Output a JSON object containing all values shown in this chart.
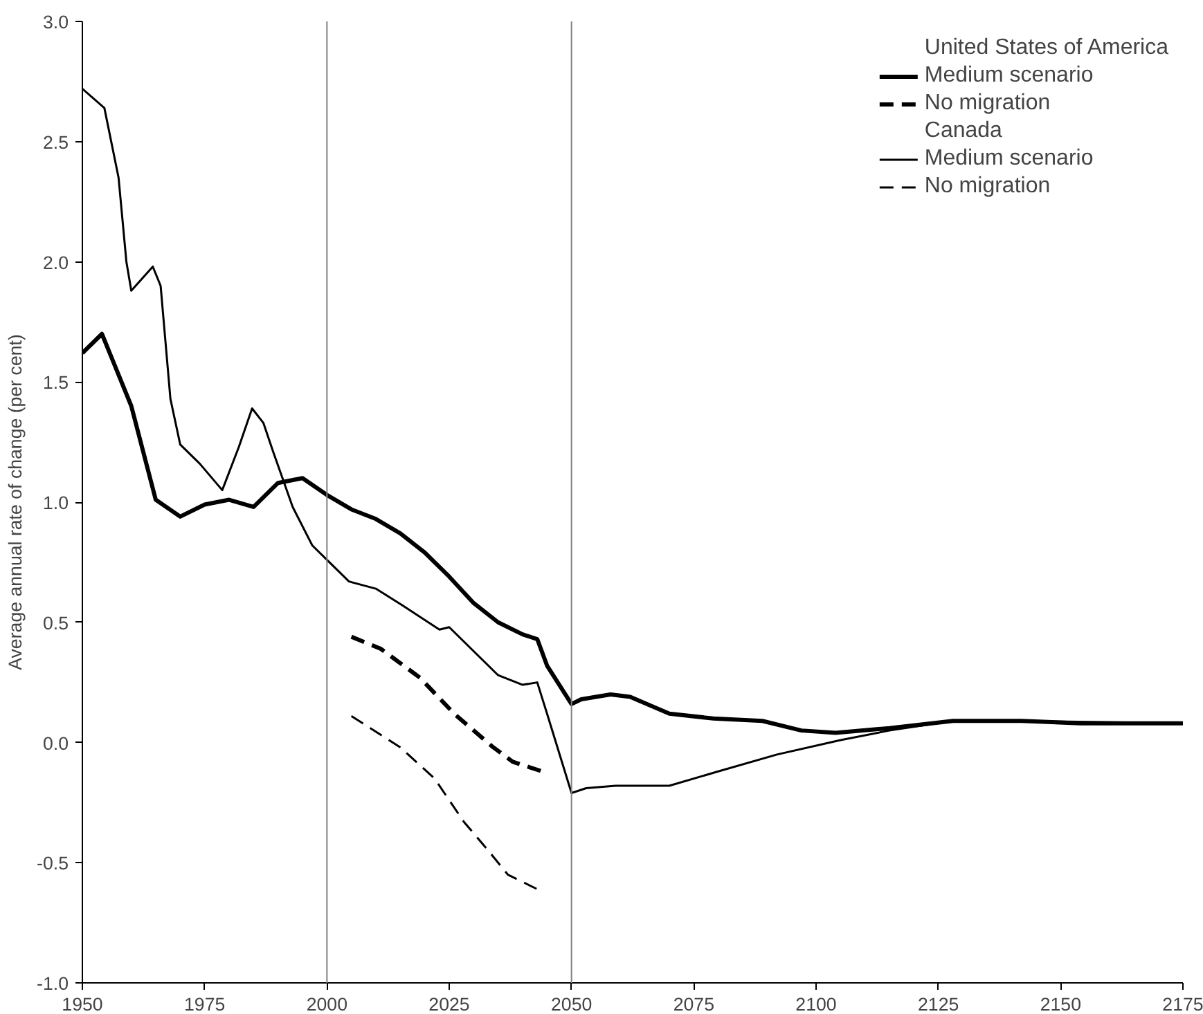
{
  "chart_data": {
    "type": "line",
    "ylabel": "Average annual rate of change (per cent)",
    "annotations": [
      "United States of America",
      "Canada"
    ],
    "xlim": [
      1950,
      2175
    ],
    "xticks": [
      1950,
      1975,
      2000,
      2025,
      2050,
      2075,
      2100,
      2125,
      2150,
      2175
    ],
    "ylim": [
      -1.0,
      3.0
    ],
    "yticks": [
      {
        "value": -1,
        "label": "-1.0"
      },
      {
        "value": -0.5,
        "label": "-0.5"
      },
      {
        "value": 0,
        "label": "0.0"
      },
      {
        "value": 0.5,
        "label": "0.5"
      },
      {
        "value": 1,
        "label": "1.0"
      },
      {
        "value": 1.5,
        "label": "1.5"
      },
      {
        "value": 2,
        "label": "2.0"
      },
      {
        "value": 2.5,
        "label": "2.5"
      },
      {
        "value": 3,
        "label": "3.0"
      }
    ],
    "grid": false,
    "legend": "top right",
    "marker": "none",
    "ref_lines": [
      {
        "axis": "x",
        "value": 2000,
        "color": "#808080"
      },
      {
        "axis": "x",
        "value": 2050,
        "color": "#808080"
      }
    ],
    "series": [
      {
        "name": "Medium scenario",
        "color": "#000000",
        "line_style": "solid",
        "x": [
          1950,
          1954,
          1957,
          1960,
          1965,
          1970,
          1975,
          1980,
          1985,
          1990,
          1995,
          2000,
          2005,
          2010,
          2015,
          2020,
          2025,
          2030,
          2035,
          2040,
          2043,
          2045,
          2050,
          2052,
          2058,
          2062,
          2070,
          2079,
          2089,
          2097,
          2104,
          2115,
          2128,
          2142,
          2154,
          2175
        ],
        "values": [
          1.62,
          1.7,
          1.55,
          1.4,
          1.01,
          0.94,
          0.99,
          1.01,
          0.98,
          1.08,
          1.1,
          1.03,
          0.97,
          0.93,
          0.87,
          0.79,
          0.69,
          0.58,
          0.5,
          0.45,
          0.43,
          0.32,
          0.16,
          0.18,
          0.2,
          0.19,
          0.12,
          0.1,
          0.09,
          0.05,
          0.04,
          0.06,
          0.09,
          0.09,
          0.08,
          0.08
        ]
      },
      {
        "name": "No migration",
        "color": "#000000",
        "line_style": "dashed",
        "x": [
          2005,
          2011,
          2019,
          2026,
          2034,
          2038,
          2044
        ],
        "values": [
          0.44,
          0.39,
          0.27,
          0.12,
          -0.02,
          -0.08,
          -0.12
        ]
      },
      {
        "name": "Medium scenario",
        "color": "#000000",
        "line_style": "solid",
        "x": [
          1950,
          1954.5,
          1957.4,
          1959,
          1960,
          1964.4,
          1966,
          1968,
          1970,
          1974,
          1978.6,
          1982,
          1984.7,
          1987,
          1989,
          1993,
          1997,
          2000,
          2004.5,
          2010,
          2015.5,
          2023,
          2025,
          2030,
          2035,
          2040,
          2043,
          2045,
          2050,
          2053,
          2059,
          2070,
          2080,
          2092,
          2105,
          2115,
          2128,
          2142,
          2175
        ],
        "values": [
          2.72,
          2.64,
          2.35,
          2.0,
          1.88,
          1.98,
          1.9,
          1.43,
          1.24,
          1.16,
          1.05,
          1.23,
          1.39,
          1.33,
          1.21,
          0.98,
          0.82,
          0.76,
          0.67,
          0.64,
          0.57,
          0.47,
          0.48,
          0.38,
          0.28,
          0.24,
          0.25,
          0.12,
          -0.21,
          -0.19,
          -0.18,
          -0.18,
          -0.12,
          -0.05,
          0.01,
          0.05,
          0.09,
          0.09,
          0.08
        ]
      },
      {
        "name": "No migration",
        "color": "#000000",
        "line_style": "dashed",
        "x": [
          2005,
          2015,
          2022,
          2028,
          2033,
          2037,
          2041,
          2044
        ],
        "values": [
          0.11,
          -0.02,
          -0.15,
          -0.33,
          -0.45,
          -0.55,
          -0.59,
          -0.62
        ]
      }
    ]
  }
}
